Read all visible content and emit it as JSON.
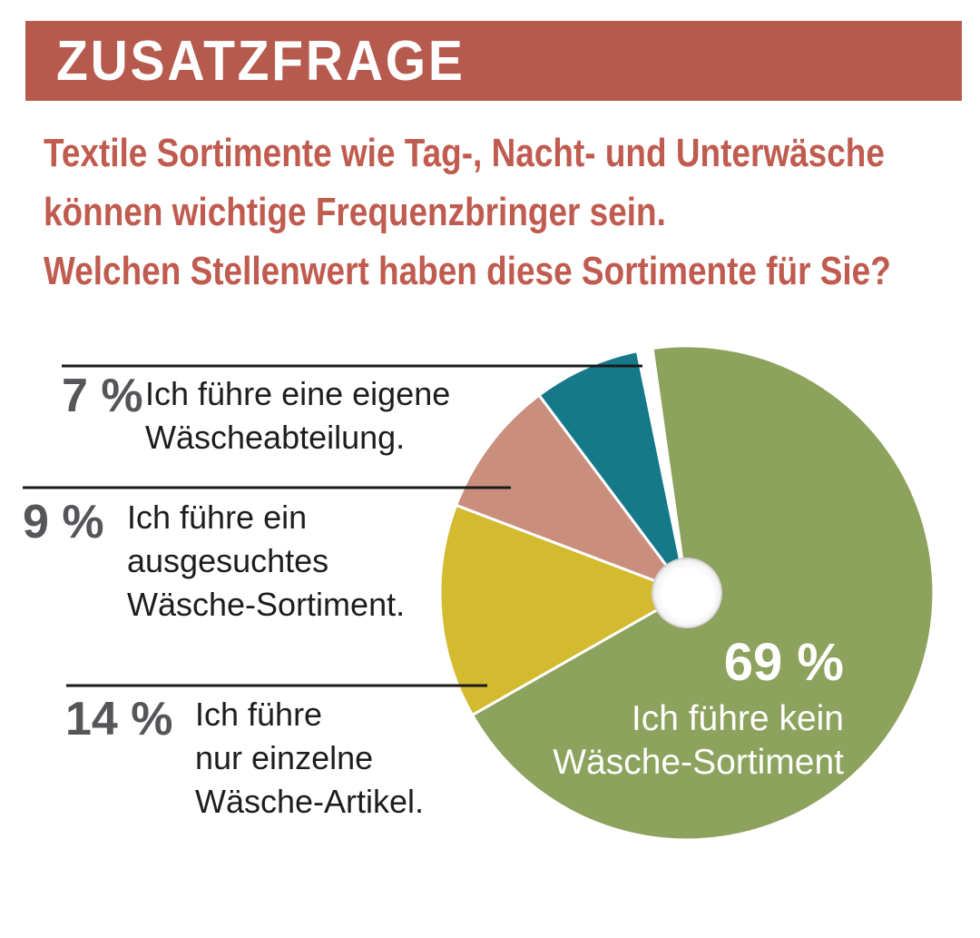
{
  "page": {
    "header": {
      "title": "ZUSATZFRAGE"
    },
    "question_lines": [
      "Textile Sortimente wie Tag-, Nacht- und Unterwäsche",
      "können wichtige Frequenzbringer sein.",
      "Welchen Stellenwert haben diese Sortimente für Sie?"
    ]
  },
  "colors": {
    "header_bg": "#b65a4e",
    "question_text": "#c05b4f",
    "pct_gray": "#55565a",
    "label_black": "#1d1d1b",
    "callout_line": "#1a1a1a",
    "inside_label_text": "#ffffff"
  },
  "chart_data": {
    "type": "pie",
    "title": "ZUSATZFRAGE",
    "question": "Textile Sortimente wie Tag-, Nacht- und Unterwäsche können wichtige Frequenzbringer sein. Welchen Stellenwert haben diese Sortimente für Sie?",
    "donut_hole": true,
    "direction": "clockwise",
    "start_angle_deg": -8,
    "legend_position": "callouts-left-and-inside",
    "slices": [
      {
        "value": 69,
        "pct_label": "69 %",
        "label": "Ich führe kein Wäsche-Sortiment",
        "label_lines": [
          "Ich führe kein",
          "Wäsche-Sortiment"
        ],
        "color": "#8da25d",
        "label_position": "inside"
      },
      {
        "value": 14,
        "pct_label": "14 %",
        "label": "Ich führe nur einzelne Wäsche-Artikel.",
        "label_lines": [
          "Ich führe",
          "nur einzelne",
          "Wäsche-Artikel."
        ],
        "color": "#d3ba2f",
        "label_position": "left-callout"
      },
      {
        "value": 9,
        "pct_label": "9 %",
        "label": "Ich führe ein ausgesuchtes Wäsche-Sortiment.",
        "label_lines": [
          "Ich führe ein",
          "ausgesuchtes",
          "Wäsche-Sortiment."
        ],
        "color": "#ca8e7d",
        "label_position": "left-callout"
      },
      {
        "value": 7,
        "pct_label": "7 %",
        "label": "Ich führe eine eigene Wäscheabteilung.",
        "label_lines": [
          "Ich führe eine eigene",
          "Wäscheabteilung."
        ],
        "color": "#15798a",
        "label_position": "left-callout"
      }
    ]
  }
}
